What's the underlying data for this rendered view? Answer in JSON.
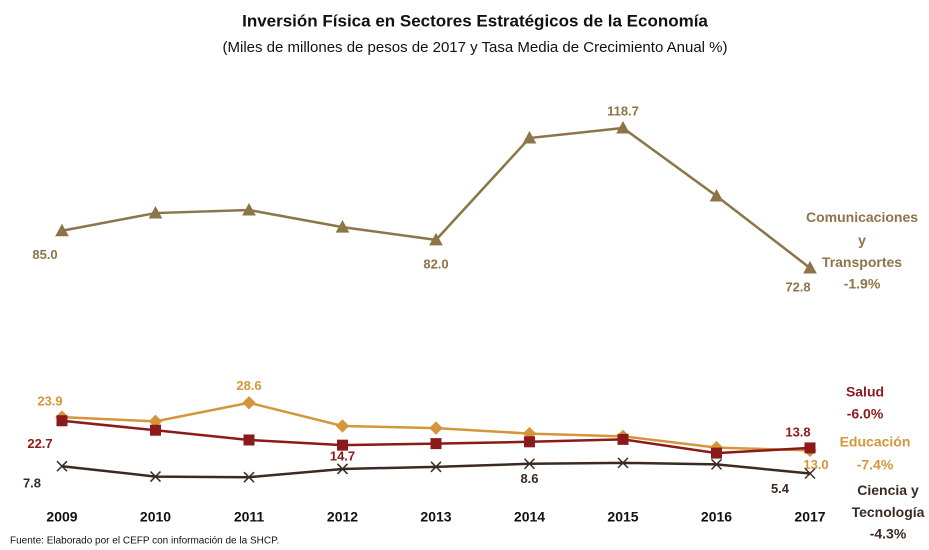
{
  "chart_data": {
    "type": "line",
    "title": "Inversión Física en Sectores Estratégicos de la Economía",
    "subtitle": "(Miles de millones de pesos de 2017 y Tasa Media de Crecimiento Anual %)",
    "source": "Fuente: Elaborado por el CEFP con información de la SHCP.",
    "categories": [
      "2009",
      "2010",
      "2011",
      "2012",
      "2013",
      "2014",
      "2015",
      "2016",
      "2017"
    ],
    "series": [
      {
        "name": "Comunicaciones y Transportes",
        "rate": "-1.9%",
        "color": "#8c7548",
        "marker": "triangle",
        "values": [
          85.0,
          90.8,
          91.8,
          86.2,
          82.0,
          115.4,
          118.7,
          96.4,
          72.8
        ],
        "value_labels": [
          "85.0",
          null,
          null,
          null,
          "82.0",
          null,
          "118.7",
          null,
          "72.8"
        ]
      },
      {
        "name": "Educación",
        "rate": "-7.4%",
        "color": "#d4963a",
        "marker": "diamond",
        "values": [
          23.9,
          22.5,
          28.6,
          21.0,
          20.3,
          18.5,
          17.6,
          13.9,
          13.0
        ],
        "value_labels": [
          "23.9",
          null,
          "28.6",
          null,
          null,
          null,
          null,
          null,
          "13.0"
        ]
      },
      {
        "name": "Salud",
        "rate": "-6.0%",
        "color": "#8b1a1a",
        "marker": "square",
        "values": [
          22.7,
          19.6,
          16.4,
          14.7,
          15.2,
          15.8,
          16.6,
          12.1,
          13.8
        ],
        "value_labels": [
          "22.7",
          null,
          null,
          "14.7",
          null,
          null,
          null,
          null,
          "13.8"
        ]
      },
      {
        "name": "Ciencia y Tecnología",
        "rate": "-4.3%",
        "color": "#3a2a22",
        "marker": "x",
        "values": [
          7.8,
          4.4,
          4.2,
          6.9,
          7.6,
          8.6,
          8.9,
          8.4,
          5.4
        ],
        "value_labels": [
          "7.8",
          null,
          null,
          null,
          null,
          "8.6",
          null,
          null,
          "5.4"
        ]
      }
    ]
  }
}
